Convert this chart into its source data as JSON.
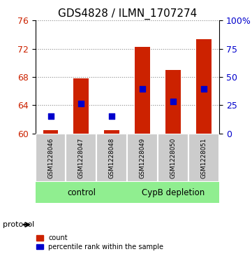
{
  "title": "GDS4828 / ILMN_1707274",
  "samples": [
    "GSM1228046",
    "GSM1228047",
    "GSM1228048",
    "GSM1228049",
    "GSM1228050",
    "GSM1228051"
  ],
  "bar_values": [
    60.5,
    67.8,
    60.5,
    72.2,
    69.0,
    73.3
  ],
  "bar_base": 60.0,
  "percentile_values": [
    62.5,
    64.2,
    62.5,
    66.3,
    64.5,
    66.3
  ],
  "bar_color": "#cc2200",
  "dot_color": "#0000cc",
  "ylim": [
    60,
    76
  ],
  "y_ticks_left": [
    60,
    64,
    68,
    72,
    76
  ],
  "y_ticks_right": [
    0,
    25,
    50,
    75,
    100
  ],
  "groups": [
    {
      "label": "control",
      "indices": [
        0,
        1,
        2
      ],
      "color": "#90ee90"
    },
    {
      "label": "CypB depletion",
      "indices": [
        3,
        4,
        5
      ],
      "color": "#90ee90"
    }
  ],
  "protocol_label": "protocol",
  "legend_count": "count",
  "legend_percentile": "percentile rank within the sample",
  "bar_width": 0.5,
  "sample_area_color": "#cccccc",
  "grid_color": "#888888",
  "title_fontsize": 11,
  "tick_fontsize": 9
}
